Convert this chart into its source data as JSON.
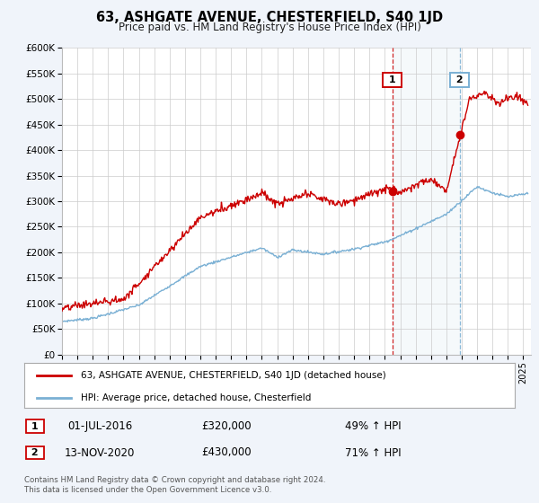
{
  "title": "63, ASHGATE AVENUE, CHESTERFIELD, S40 1JD",
  "subtitle": "Price paid vs. HM Land Registry's House Price Index (HPI)",
  "ylim": [
    0,
    600000
  ],
  "yticks": [
    0,
    50000,
    100000,
    150000,
    200000,
    250000,
    300000,
    350000,
    400000,
    450000,
    500000,
    550000,
    600000
  ],
  "ytick_labels": [
    "£0",
    "£50K",
    "£100K",
    "£150K",
    "£200K",
    "£250K",
    "£300K",
    "£350K",
    "£400K",
    "£450K",
    "£500K",
    "£550K",
    "£600K"
  ],
  "xlim_start": 1995.0,
  "xlim_end": 2025.5,
  "house_color": "#cc0000",
  "hpi_color": "#7ab0d4",
  "marker1_x": 2016.5,
  "marker1_y": 320000,
  "marker1_label": "01-JUL-2016",
  "marker1_price": "£320,000",
  "marker1_pct": "49% ↑ HPI",
  "marker2_x": 2020.87,
  "marker2_y": 430000,
  "marker2_label": "13-NOV-2020",
  "marker2_price": "£430,000",
  "marker2_pct": "71% ↑ HPI",
  "legend_house_label": "63, ASHGATE AVENUE, CHESTERFIELD, S40 1JD (detached house)",
  "legend_hpi_label": "HPI: Average price, detached house, Chesterfield",
  "footer_line1": "Contains HM Land Registry data © Crown copyright and database right 2024.",
  "footer_line2": "This data is licensed under the Open Government Licence v3.0.",
  "bg_color": "#f0f4fa",
  "plot_bg_color": "#ffffff",
  "grid_color": "#cccccc"
}
